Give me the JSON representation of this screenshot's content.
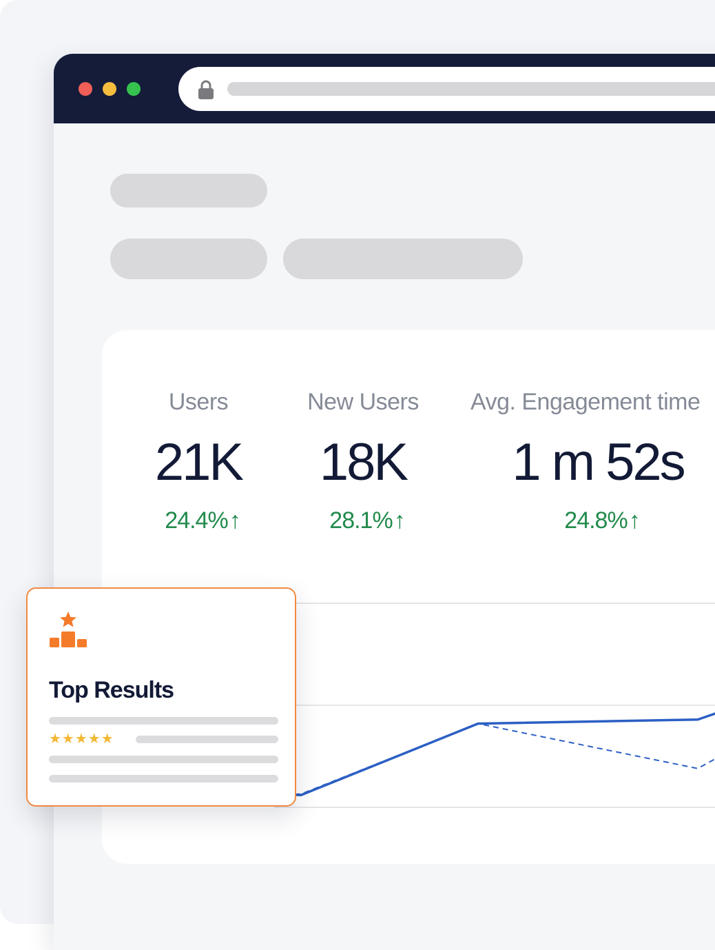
{
  "browser": {
    "controls": [
      "close",
      "minimize",
      "maximize"
    ],
    "address_bar": {
      "icon": "lock-icon"
    }
  },
  "stats": [
    {
      "label": "Users",
      "value": "21K",
      "change": "24.4%",
      "trend_icon": "arrow-up-icon"
    },
    {
      "label": "New Users",
      "value": "18K",
      "change": "28.1%",
      "trend_icon": "arrow-up-icon"
    },
    {
      "label": "Avg. Engagement time",
      "value": "1 m 52s",
      "change": "24.8%",
      "trend_icon": "arrow-up-icon"
    }
  ],
  "chart_data": {
    "type": "line",
    "title": "",
    "xlabel": "",
    "ylabel": "",
    "grid": true,
    "series": [
      {
        "style": "solid",
        "color": "#2b5fc4",
        "values": [
          0.15,
          0.12,
          0.82,
          0.86,
          1.15
        ]
      },
      {
        "style": "dashed",
        "color": "#2b5fc4",
        "values": [
          0.11,
          0.13,
          0.82,
          0.38,
          0.85
        ]
      }
    ]
  },
  "popup": {
    "icon": "podium-star-icon",
    "title": "Top Results",
    "rating_stars": "★★★★★",
    "rating": 5
  },
  "colors": {
    "titlebar": "#141c39",
    "positive": "#218a4c",
    "accent": "#f08a42",
    "line": "#2b5fc4"
  }
}
